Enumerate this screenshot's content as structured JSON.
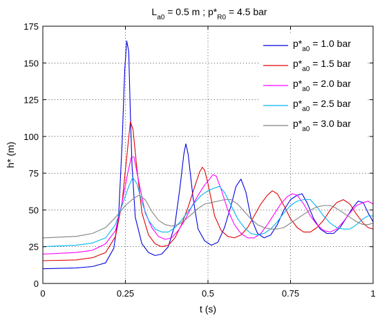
{
  "chart_data": {
    "type": "line",
    "title": {
      "parts": [
        {
          "text": "L",
          "sub": false
        },
        {
          "text": "a0",
          "sub": true
        },
        {
          "text": " = 0.5 m ;  p*",
          "sub": false
        },
        {
          "text": "R0",
          "sub": true
        },
        {
          "text": " = 4.5 bar",
          "sub": false
        }
      ]
    },
    "xlabel": "t  (s)",
    "ylabel": "h*  (m)",
    "xlim": [
      0,
      1
    ],
    "ylim": [
      0,
      175
    ],
    "xticks": [
      0,
      0.25,
      0.5,
      0.75,
      1
    ],
    "xtick_labels": [
      "0",
      "0.25",
      "0.5",
      "0.75",
      "1"
    ],
    "yticks": [
      0,
      25,
      50,
      75,
      100,
      125,
      150,
      175
    ],
    "ytick_labels": [
      "0",
      "25",
      "50",
      "75",
      "100",
      "125",
      "150",
      "175"
    ],
    "grid": true,
    "legend_position": "top-right",
    "series": [
      {
        "name_parts": [
          {
            "text": "p*",
            "sub": false
          },
          {
            "text": "a0",
            "sub": true
          },
          {
            "text": " = 1.0 bar",
            "sub": false
          }
        ],
        "color": "#0000e0",
        "points": [
          [
            0,
            10
          ],
          [
            0.1,
            10.5
          ],
          [
            0.15,
            11.5
          ],
          [
            0.19,
            14
          ],
          [
            0.215,
            24
          ],
          [
            0.23,
            48
          ],
          [
            0.24,
            95
          ],
          [
            0.248,
            145
          ],
          [
            0.254,
            165
          ],
          [
            0.26,
            158
          ],
          [
            0.265,
            115
          ],
          [
            0.27,
            80
          ],
          [
            0.28,
            45
          ],
          [
            0.3,
            27
          ],
          [
            0.32,
            21
          ],
          [
            0.34,
            19
          ],
          [
            0.36,
            20
          ],
          [
            0.38,
            25
          ],
          [
            0.4,
            40
          ],
          [
            0.415,
            65
          ],
          [
            0.427,
            88
          ],
          [
            0.433,
            95
          ],
          [
            0.44,
            88
          ],
          [
            0.455,
            58
          ],
          [
            0.47,
            37
          ],
          [
            0.49,
            29
          ],
          [
            0.51,
            26
          ],
          [
            0.53,
            28
          ],
          [
            0.55,
            38
          ],
          [
            0.57,
            53
          ],
          [
            0.585,
            66
          ],
          [
            0.6,
            71
          ],
          [
            0.615,
            62
          ],
          [
            0.63,
            45
          ],
          [
            0.65,
            34
          ],
          [
            0.67,
            31
          ],
          [
            0.69,
            33
          ],
          [
            0.71,
            40
          ],
          [
            0.73,
            50
          ],
          [
            0.75,
            57
          ],
          [
            0.77,
            60
          ],
          [
            0.785,
            61
          ],
          [
            0.8,
            55
          ],
          [
            0.82,
            44
          ],
          [
            0.84,
            37
          ],
          [
            0.86,
            34
          ],
          [
            0.88,
            34
          ],
          [
            0.9,
            38
          ],
          [
            0.92,
            45
          ],
          [
            0.94,
            52
          ],
          [
            0.955,
            56
          ],
          [
            0.97,
            55
          ],
          [
            0.985,
            48
          ],
          [
            1.0,
            42
          ]
        ]
      },
      {
        "name_parts": [
          {
            "text": "p*",
            "sub": false
          },
          {
            "text": "a0",
            "sub": true
          },
          {
            "text": " = 1.5 bar",
            "sub": false
          }
        ],
        "color": "#e00000",
        "points": [
          [
            0,
            15.5
          ],
          [
            0.1,
            16
          ],
          [
            0.15,
            17.5
          ],
          [
            0.19,
            21
          ],
          [
            0.22,
            32
          ],
          [
            0.24,
            55
          ],
          [
            0.255,
            88
          ],
          [
            0.265,
            110
          ],
          [
            0.273,
            105
          ],
          [
            0.283,
            82
          ],
          [
            0.3,
            48
          ],
          [
            0.32,
            33
          ],
          [
            0.34,
            27
          ],
          [
            0.36,
            25
          ],
          [
            0.38,
            26
          ],
          [
            0.4,
            31
          ],
          [
            0.42,
            40
          ],
          [
            0.44,
            52
          ],
          [
            0.46,
            66
          ],
          [
            0.475,
            76
          ],
          [
            0.483,
            79
          ],
          [
            0.49,
            77
          ],
          [
            0.5,
            68
          ],
          [
            0.52,
            46
          ],
          [
            0.54,
            36
          ],
          [
            0.56,
            32
          ],
          [
            0.58,
            31
          ],
          [
            0.6,
            33
          ],
          [
            0.62,
            38
          ],
          [
            0.64,
            46
          ],
          [
            0.66,
            54
          ],
          [
            0.68,
            60
          ],
          [
            0.695,
            63
          ],
          [
            0.71,
            61
          ],
          [
            0.73,
            53
          ],
          [
            0.75,
            44
          ],
          [
            0.77,
            38
          ],
          [
            0.79,
            35
          ],
          [
            0.81,
            35
          ],
          [
            0.83,
            38
          ],
          [
            0.85,
            43
          ],
          [
            0.87,
            50
          ],
          [
            0.89,
            55
          ],
          [
            0.91,
            57
          ],
          [
            0.93,
            54
          ],
          [
            0.95,
            47
          ],
          [
            0.97,
            41
          ],
          [
            0.985,
            38
          ],
          [
            1.0,
            37
          ]
        ]
      },
      {
        "name_parts": [
          {
            "text": "p*",
            "sub": false
          },
          {
            "text": "a0",
            "sub": true
          },
          {
            "text": " = 2.0 bar",
            "sub": false
          }
        ],
        "color": "#ff00ff",
        "points": [
          [
            0,
            20
          ],
          [
            0.1,
            21
          ],
          [
            0.15,
            22.5
          ],
          [
            0.19,
            27
          ],
          [
            0.22,
            36
          ],
          [
            0.24,
            55
          ],
          [
            0.258,
            76
          ],
          [
            0.268,
            86
          ],
          [
            0.276,
            86
          ],
          [
            0.29,
            70
          ],
          [
            0.31,
            48
          ],
          [
            0.33,
            38
          ],
          [
            0.35,
            32
          ],
          [
            0.37,
            30
          ],
          [
            0.39,
            31
          ],
          [
            0.41,
            36
          ],
          [
            0.43,
            43
          ],
          [
            0.45,
            52
          ],
          [
            0.47,
            60
          ],
          [
            0.49,
            67
          ],
          [
            0.505,
            71
          ],
          [
            0.515,
            74
          ],
          [
            0.525,
            73
          ],
          [
            0.54,
            64
          ],
          [
            0.56,
            50
          ],
          [
            0.58,
            40
          ],
          [
            0.6,
            34
          ],
          [
            0.62,
            31
          ],
          [
            0.64,
            31
          ],
          [
            0.66,
            34
          ],
          [
            0.68,
            40
          ],
          [
            0.7,
            47
          ],
          [
            0.72,
            54
          ],
          [
            0.74,
            59
          ],
          [
            0.755,
            61
          ],
          [
            0.77,
            60
          ],
          [
            0.79,
            54
          ],
          [
            0.81,
            46
          ],
          [
            0.83,
            40
          ],
          [
            0.85,
            36
          ],
          [
            0.87,
            35
          ],
          [
            0.89,
            37
          ],
          [
            0.91,
            42
          ],
          [
            0.93,
            48
          ],
          [
            0.95,
            53
          ],
          [
            0.97,
            55
          ],
          [
            0.985,
            56
          ],
          [
            1.0,
            54
          ]
        ]
      },
      {
        "name_parts": [
          {
            "text": "p*",
            "sub": false
          },
          {
            "text": "a0",
            "sub": true
          },
          {
            "text": " = 2.5 bar",
            "sub": false
          }
        ],
        "color": "#00b4f0",
        "points": [
          [
            0,
            25
          ],
          [
            0.1,
            26
          ],
          [
            0.15,
            27.5
          ],
          [
            0.19,
            31
          ],
          [
            0.22,
            40
          ],
          [
            0.24,
            53
          ],
          [
            0.26,
            66
          ],
          [
            0.272,
            72
          ],
          [
            0.285,
            68
          ],
          [
            0.3,
            55
          ],
          [
            0.32,
            43
          ],
          [
            0.34,
            37
          ],
          [
            0.36,
            35
          ],
          [
            0.38,
            35
          ],
          [
            0.4,
            38
          ],
          [
            0.42,
            43
          ],
          [
            0.44,
            49
          ],
          [
            0.46,
            55
          ],
          [
            0.48,
            60
          ],
          [
            0.5,
            63
          ],
          [
            0.52,
            65
          ],
          [
            0.535,
            66
          ],
          [
            0.55,
            62
          ],
          [
            0.57,
            53
          ],
          [
            0.59,
            44
          ],
          [
            0.61,
            38
          ],
          [
            0.63,
            34
          ],
          [
            0.65,
            33
          ],
          [
            0.67,
            34
          ],
          [
            0.69,
            37
          ],
          [
            0.71,
            42
          ],
          [
            0.73,
            48
          ],
          [
            0.75,
            53
          ],
          [
            0.77,
            56
          ],
          [
            0.79,
            57
          ],
          [
            0.81,
            57
          ],
          [
            0.83,
            52
          ],
          [
            0.85,
            46
          ],
          [
            0.87,
            41
          ],
          [
            0.89,
            38
          ],
          [
            0.91,
            37
          ],
          [
            0.93,
            37
          ],
          [
            0.95,
            40
          ],
          [
            0.97,
            44
          ],
          [
            0.985,
            46
          ],
          [
            1.0,
            46
          ]
        ]
      },
      {
        "name_parts": [
          {
            "text": "p*",
            "sub": false
          },
          {
            "text": "a0",
            "sub": true
          },
          {
            "text": " = 3.0 bar",
            "sub": false
          }
        ],
        "color": "#808080",
        "points": [
          [
            0,
            31
          ],
          [
            0.1,
            32
          ],
          [
            0.15,
            34
          ],
          [
            0.19,
            38
          ],
          [
            0.22,
            45
          ],
          [
            0.25,
            53
          ],
          [
            0.27,
            57
          ],
          [
            0.29,
            60
          ],
          [
            0.31,
            57
          ],
          [
            0.33,
            49
          ],
          [
            0.35,
            43
          ],
          [
            0.37,
            40
          ],
          [
            0.39,
            39
          ],
          [
            0.41,
            40
          ],
          [
            0.43,
            43
          ],
          [
            0.45,
            47
          ],
          [
            0.47,
            51
          ],
          [
            0.49,
            54
          ],
          [
            0.51,
            55
          ],
          [
            0.53,
            56
          ],
          [
            0.55,
            57
          ],
          [
            0.57,
            57
          ],
          [
            0.59,
            54
          ],
          [
            0.61,
            49
          ],
          [
            0.63,
            44
          ],
          [
            0.65,
            40
          ],
          [
            0.67,
            38
          ],
          [
            0.69,
            37
          ],
          [
            0.71,
            37
          ],
          [
            0.73,
            38
          ],
          [
            0.75,
            41
          ],
          [
            0.77,
            44
          ],
          [
            0.79,
            47
          ],
          [
            0.81,
            50
          ],
          [
            0.83,
            52
          ],
          [
            0.85,
            53
          ],
          [
            0.87,
            53
          ],
          [
            0.89,
            51
          ],
          [
            0.91,
            48
          ],
          [
            0.93,
            45
          ],
          [
            0.95,
            42
          ],
          [
            0.97,
            40
          ],
          [
            0.985,
            40
          ],
          [
            1.0,
            41
          ]
        ]
      }
    ]
  }
}
